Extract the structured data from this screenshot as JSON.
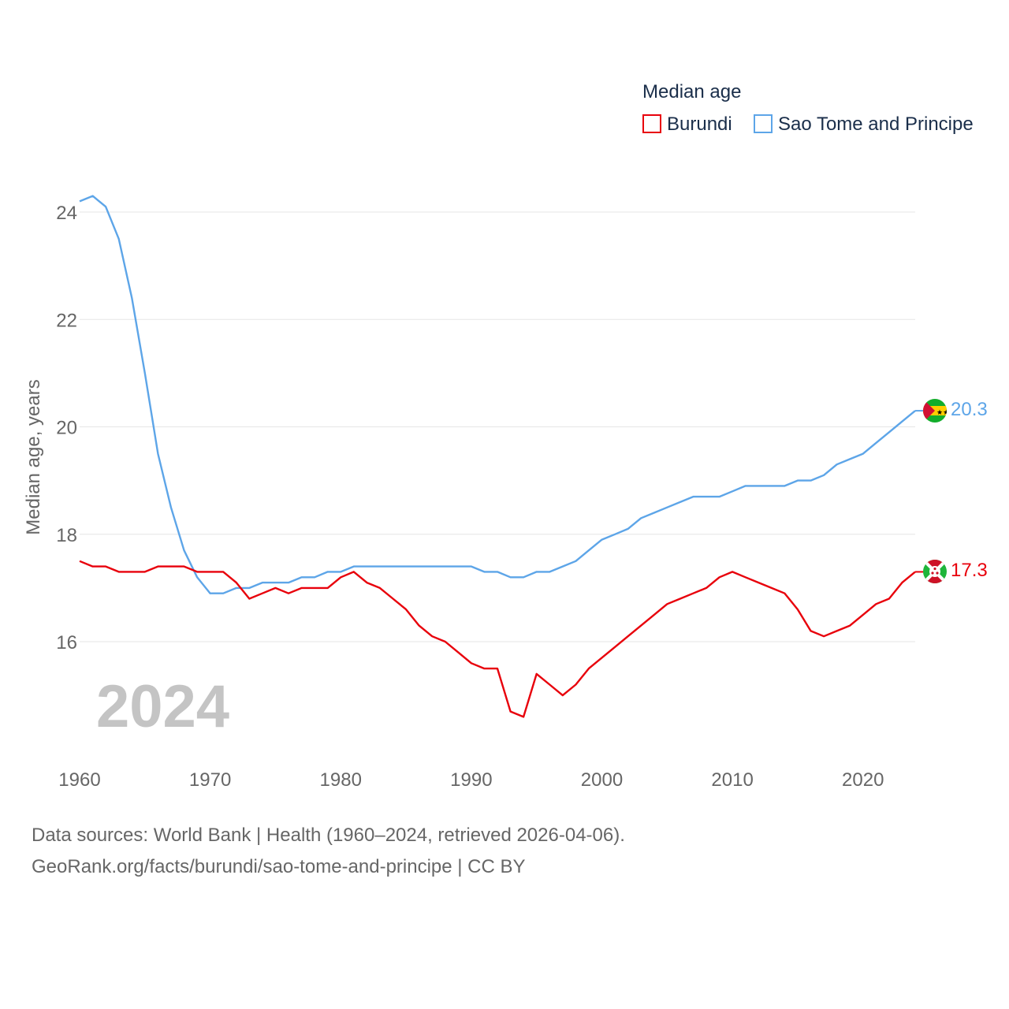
{
  "chart_data": {
    "type": "line",
    "legend_title": "Median age",
    "ylabel": "Median age, years",
    "xlim": [
      1960,
      2024
    ],
    "ylim": [
      14,
      25
    ],
    "y_ticks": [
      16,
      18,
      20,
      22,
      24
    ],
    "x_ticks": [
      1960,
      1970,
      1980,
      1990,
      2000,
      2010,
      2020
    ],
    "year_watermark": "2024",
    "x": [
      1960,
      1961,
      1962,
      1963,
      1964,
      1965,
      1966,
      1967,
      1968,
      1969,
      1970,
      1971,
      1972,
      1973,
      1974,
      1975,
      1976,
      1977,
      1978,
      1979,
      1980,
      1981,
      1982,
      1983,
      1984,
      1985,
      1986,
      1987,
      1988,
      1989,
      1990,
      1991,
      1992,
      1993,
      1994,
      1995,
      1996,
      1997,
      1998,
      1999,
      2000,
      2001,
      2002,
      2003,
      2004,
      2005,
      2006,
      2007,
      2008,
      2009,
      2010,
      2011,
      2012,
      2013,
      2014,
      2015,
      2016,
      2017,
      2018,
      2019,
      2020,
      2021,
      2022,
      2023,
      2024
    ],
    "series": [
      {
        "name": "Burundi",
        "color": "#e8000b",
        "end_label": "17.3",
        "flag": "burundi-flag-icon",
        "values": [
          17.5,
          17.4,
          17.4,
          17.3,
          17.3,
          17.3,
          17.4,
          17.4,
          17.4,
          17.3,
          17.3,
          17.3,
          17.1,
          16.8,
          16.9,
          17.0,
          16.9,
          17.0,
          17.0,
          17.0,
          17.2,
          17.3,
          17.1,
          17.0,
          16.8,
          16.6,
          16.3,
          16.1,
          16.0,
          15.8,
          15.6,
          15.5,
          15.5,
          14.7,
          14.6,
          15.4,
          15.2,
          15.0,
          15.2,
          15.5,
          15.7,
          15.9,
          16.1,
          16.3,
          16.5,
          16.7,
          16.8,
          16.9,
          17.0,
          17.2,
          17.3,
          17.2,
          17.1,
          17.0,
          16.9,
          16.6,
          16.2,
          16.1,
          16.2,
          16.3,
          16.5,
          16.7,
          16.8,
          17.1,
          17.3
        ]
      },
      {
        "name": "Sao Tome and Principe",
        "color": "#5da5e8",
        "end_label": "20.3",
        "flag": "sao-tome-flag-icon",
        "values": [
          24.2,
          24.3,
          24.1,
          23.5,
          22.4,
          21.0,
          19.5,
          18.5,
          17.7,
          17.2,
          16.9,
          16.9,
          17.0,
          17.0,
          17.1,
          17.1,
          17.1,
          17.2,
          17.2,
          17.3,
          17.3,
          17.4,
          17.4,
          17.4,
          17.4,
          17.4,
          17.4,
          17.4,
          17.4,
          17.4,
          17.4,
          17.3,
          17.3,
          17.2,
          17.2,
          17.3,
          17.3,
          17.4,
          17.5,
          17.7,
          17.9,
          18.0,
          18.1,
          18.3,
          18.4,
          18.5,
          18.6,
          18.7,
          18.7,
          18.7,
          18.8,
          18.9,
          18.9,
          18.9,
          18.9,
          19.0,
          19.0,
          19.1,
          19.3,
          19.4,
          19.5,
          19.7,
          19.9,
          20.1,
          20.3
        ]
      }
    ]
  },
  "source": {
    "line1": "Data sources: World Bank | Health (1960–2024, retrieved 2026-04-06).",
    "line2": "GeoRank.org/facts/burundi/sao-tome-and-principe | CC BY"
  }
}
